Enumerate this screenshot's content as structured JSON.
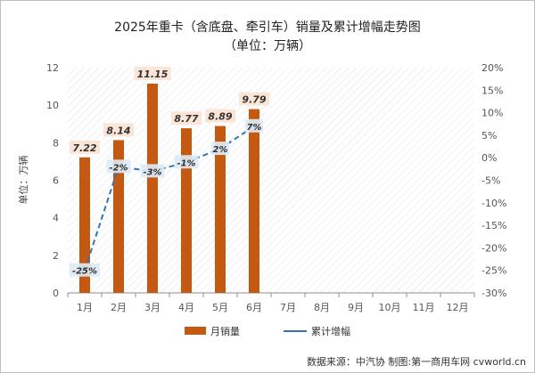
{
  "chart_data": {
    "type": "bar",
    "title": "2025年重卡（含底盘、牵引车）销量及累计增幅走势图",
    "subtitle": "（单位：万辆）",
    "categories": [
      "1月",
      "2月",
      "3月",
      "4月",
      "5月",
      "6月",
      "7月",
      "8月",
      "9月",
      "10月",
      "11月",
      "12月"
    ],
    "series": [
      {
        "name": "月销量",
        "type": "bar",
        "axis": "left",
        "color": "#C65911",
        "values": [
          7.22,
          8.14,
          11.15,
          8.77,
          8.89,
          9.79,
          null,
          null,
          null,
          null,
          null,
          null
        ],
        "labels": [
          "7.22",
          "8.14",
          "11.15",
          "8.77",
          "8.89",
          "9.79",
          "",
          "",
          "",
          "",
          "",
          ""
        ]
      },
      {
        "name": "累计增幅",
        "type": "line",
        "axis": "right",
        "color": "#2E75B6",
        "dashed": true,
        "values": [
          -25,
          -2,
          -3,
          -1,
          2,
          7,
          null,
          null,
          null,
          null,
          null,
          null
        ],
        "labels": [
          "-25%",
          "-2%",
          "-3%",
          "-1%",
          "2%",
          "7%",
          "",
          "",
          "",
          "",
          "",
          ""
        ]
      }
    ],
    "ylabel": "单位：万辆",
    "ylim": [
      0,
      12
    ],
    "yticks": [
      "0",
      "2",
      "4",
      "6",
      "8",
      "10",
      "12"
    ],
    "y2lim": [
      -30,
      20
    ],
    "y2ticks": [
      "-30%",
      "-25%",
      "-20%",
      "-15%",
      "-10%",
      "-5%",
      "0%",
      "5%",
      "10%",
      "15%",
      "20%"
    ],
    "grid": false,
    "legend_position": "bottom",
    "source": "数据来源：中汽协   制图:第一商用车网 cvworld.cn"
  }
}
